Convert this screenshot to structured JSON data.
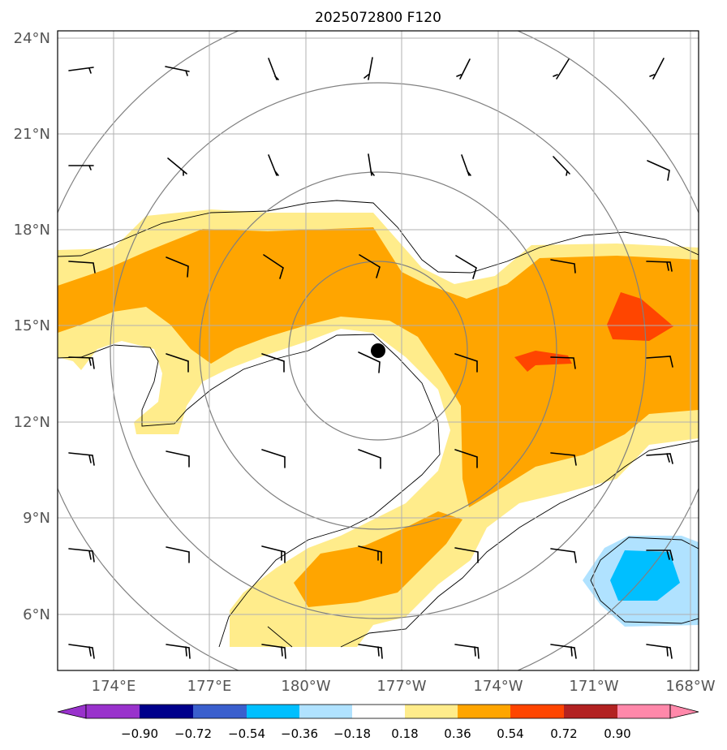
{
  "title": "2025072800 F120",
  "lat_labels": [
    "24°N",
    "21°N",
    "18°N",
    "15°N",
    "12°N",
    "9°N",
    "6°N"
  ],
  "lon_labels": [
    "174°E",
    "177°E",
    "180°W",
    "177°W",
    "174°W",
    "171°W",
    "168°W"
  ],
  "colorbar": {
    "labels": [
      "−0.90",
      "−0.72",
      "−0.54",
      "−0.36",
      "−0.18",
      "0.18",
      "0.36",
      "0.54",
      "0.72",
      "0.90"
    ],
    "colors": [
      "#9932CC",
      "#00008B",
      "#3A5FCD",
      "#00BFFF",
      "#B0E2FF",
      "#FFFFFF",
      "#FFEC8B",
      "#FFA500",
      "#FF4500",
      "#B22222",
      "#FF88AA"
    ]
  },
  "storm_center": {
    "lat": 14.2,
    "lon": -177.7
  },
  "colors": {
    "fill_036": "#FFEC8B",
    "fill_054": "#FFA500",
    "fill_072": "#FF4500",
    "fill_neg036": "#00BFFF",
    "fill_neg018": "#B0E2FF",
    "grid": "#b0b0b0",
    "range_rings": "#808080"
  }
}
